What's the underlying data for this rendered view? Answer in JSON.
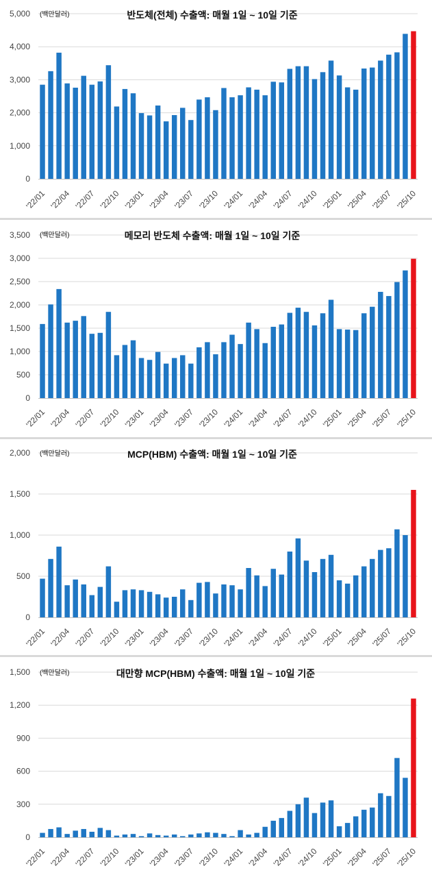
{
  "style": {
    "bar_color": "#1f77c4",
    "highlight_color": "#e8141b",
    "grid_color": "#d9d9d9"
  },
  "chart_data": [
    {
      "type": "bar",
      "title": "반도체(전체) 수출액: 매월 1일 ~ 10일 기준",
      "unit": "(백만달러)",
      "ylim": [
        0,
        5000
      ],
      "y_ticks": [
        0,
        1000,
        2000,
        3000,
        4000,
        5000
      ],
      "y_tick_labels": [
        "0",
        "1,000",
        "2,000",
        "3,000",
        "4,000",
        "5,000"
      ],
      "x_tick_labels": [
        "'22/01",
        "'22/04",
        "'22/07",
        "'22/10",
        "'23/01",
        "'23/04",
        "'23/07",
        "'23/10",
        "'24/01",
        "'24/04",
        "'24/07",
        "'24/10",
        "'25/01",
        "'25/04",
        "'25/07",
        "'25/10"
      ],
      "highlight": "last",
      "values": [
        2850,
        3260,
        3820,
        2890,
        2760,
        3120,
        2850,
        2950,
        3440,
        2190,
        2720,
        2590,
        1990,
        1920,
        2220,
        1740,
        1930,
        2150,
        1780,
        2400,
        2470,
        2080,
        2750,
        2470,
        2530,
        2770,
        2700,
        2530,
        2940,
        2920,
        3330,
        3410,
        3410,
        3020,
        3230,
        3580,
        3130,
        2770,
        2700,
        3340,
        3370,
        3580,
        3760,
        3830,
        4390,
        4470
      ]
    },
    {
      "type": "bar",
      "title": "메모리 반도체 수출액: 매월 1일 ~ 10일 기준",
      "unit": "(백만달러)",
      "ylim": [
        0,
        3500
      ],
      "y_ticks": [
        0,
        500,
        1000,
        1500,
        2000,
        2500,
        3000,
        3500
      ],
      "y_tick_labels": [
        "0",
        "500",
        "1,000",
        "1,500",
        "2,000",
        "2,500",
        "3,000",
        "3,500"
      ],
      "x_tick_labels": [
        "'22/01",
        "'22/04",
        "'22/07",
        "'22/10",
        "'23/01",
        "'23/04",
        "'23/07",
        "'23/10",
        "'24/01",
        "'24/04",
        "'24/07",
        "'24/10",
        "'25/01",
        "'25/04",
        "'25/07",
        "'25/10"
      ],
      "highlight": "last",
      "values": [
        1590,
        2010,
        2340,
        1620,
        1660,
        1760,
        1380,
        1400,
        1850,
        920,
        1140,
        1240,
        860,
        820,
        990,
        740,
        860,
        920,
        740,
        1090,
        1200,
        940,
        1200,
        1360,
        1160,
        1620,
        1480,
        1180,
        1530,
        1580,
        1830,
        1940,
        1850,
        1560,
        1820,
        2110,
        1480,
        1470,
        1460,
        1820,
        1960,
        2280,
        2190,
        2490,
        2740,
        2990
      ]
    },
    {
      "type": "bar",
      "title": "MCP(HBM)  수출액: 매월 1일 ~ 10일 기준",
      "unit": "(백만달러)",
      "ylim": [
        0,
        2000
      ],
      "y_ticks": [
        0,
        500,
        1000,
        1500,
        2000
      ],
      "y_tick_labels": [
        "0",
        "500",
        "1,000",
        "1,500",
        "2,000"
      ],
      "x_tick_labels": [
        "'22/01",
        "'22/04",
        "'22/07",
        "'22/10",
        "'23/01",
        "'23/04",
        "'23/07",
        "'23/10",
        "'24/01",
        "'24/04",
        "'24/07",
        "'24/10",
        "'25/01",
        "'25/04",
        "'25/07",
        "'25/10"
      ],
      "highlight": "last",
      "values": [
        470,
        710,
        860,
        390,
        460,
        400,
        270,
        370,
        620,
        190,
        330,
        340,
        330,
        310,
        280,
        240,
        250,
        340,
        210,
        420,
        430,
        290,
        400,
        390,
        340,
        600,
        510,
        380,
        590,
        520,
        800,
        960,
        690,
        550,
        710,
        760,
        450,
        410,
        510,
        620,
        710,
        820,
        840,
        1070,
        1000,
        1550
      ]
    },
    {
      "type": "bar",
      "title": "대만향 MCP(HBM)  수출액: 매월 1일 ~ 10일 기준",
      "unit": "(백만달러)",
      "ylim": [
        0,
        1500
      ],
      "y_ticks": [
        0,
        300,
        600,
        900,
        1200,
        1500
      ],
      "y_tick_labels": [
        "0",
        "300",
        "600",
        "900",
        "1,200",
        "1,500"
      ],
      "x_tick_labels": [
        "'22/01",
        "'22/04",
        "'22/07",
        "'22/10",
        "'23/01",
        "'23/04",
        "'23/07",
        "'23/10",
        "'24/01",
        "'24/04",
        "'24/07",
        "'24/10",
        "'25/01",
        "'25/04",
        "'25/07",
        "'25/10"
      ],
      "highlight": "last",
      "values": [
        40,
        75,
        90,
        30,
        60,
        75,
        50,
        85,
        65,
        15,
        25,
        30,
        10,
        35,
        20,
        15,
        25,
        10,
        25,
        35,
        45,
        40,
        30,
        10,
        65,
        25,
        40,
        95,
        150,
        175,
        240,
        300,
        360,
        220,
        315,
        335,
        100,
        130,
        190,
        250,
        270,
        400,
        375,
        720,
        540,
        1260
      ]
    }
  ]
}
